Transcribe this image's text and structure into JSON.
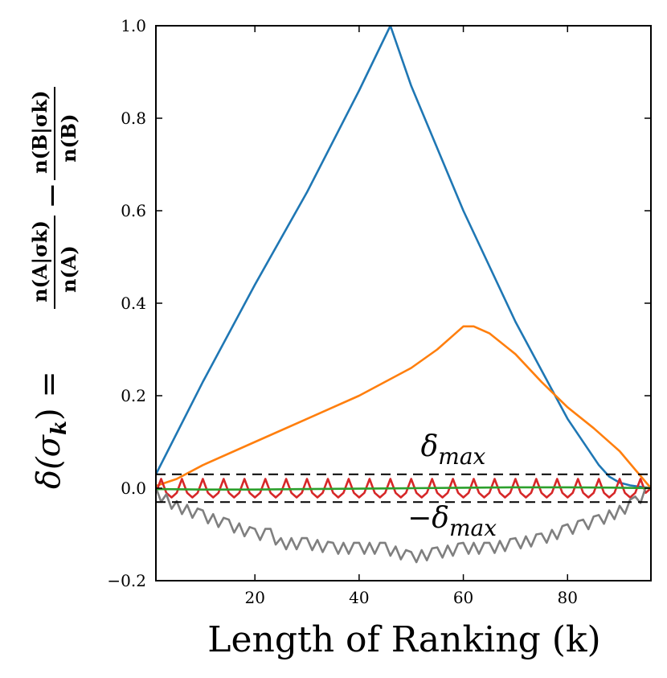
{
  "chart_data": {
    "type": "line",
    "xlabel": "Length of Ranking (k)",
    "ylabel": {
      "prefix": "δ(σ",
      "prefix_sub": "k",
      "prefix_close": ") =",
      "frac_a_num": "n(A|σk)",
      "frac_a_den": "n(A)",
      "minus": "−",
      "frac_b_num": "n(B|σk)",
      "frac_b_den": "n(B)"
    },
    "xlim": [
      1,
      96
    ],
    "ylim": [
      -0.2,
      1.0
    ],
    "xticks": [
      20,
      40,
      60,
      80
    ],
    "xtick_labels": [
      "20",
      "40",
      "60",
      "80"
    ],
    "yticks": [
      -0.2,
      0.0,
      0.2,
      0.4,
      0.6,
      0.8,
      1.0
    ],
    "ytick_labels": [
      "−0.2",
      "0.0",
      "0.2",
      "0.4",
      "0.6",
      "0.8",
      "1.0"
    ],
    "thresholds": [
      {
        "name": "delta-max",
        "value": 0.03,
        "style": "dashed",
        "color": "#000000"
      },
      {
        "name": "neg-delta-max",
        "value": -0.03,
        "style": "dashed",
        "color": "#000000"
      }
    ],
    "annotations": {
      "delta_max": {
        "symbol": "δ",
        "sub": "max",
        "x": 58,
        "y": 0.07
      },
      "neg_delta_max": {
        "symbol": "−δ",
        "sub": "max",
        "x": 57,
        "y": -0.085
      }
    },
    "series": [
      {
        "name": "blue",
        "color": "#1f77b4",
        "x": [
          1,
          10,
          20,
          30,
          40,
          46,
          50,
          60,
          70,
          80,
          86,
          88,
          90,
          92,
          96
        ],
        "y": [
          0.03,
          0.23,
          0.44,
          0.64,
          0.86,
          1.0,
          0.87,
          0.6,
          0.36,
          0.15,
          0.05,
          0.025,
          0.012,
          0.006,
          0.0
        ]
      },
      {
        "name": "orange",
        "color": "#ff7f0e",
        "x": [
          1,
          5,
          10,
          20,
          30,
          40,
          50,
          55,
          58,
          60,
          62,
          65,
          70,
          75,
          80,
          85,
          90,
          93,
          96
        ],
        "y": [
          0.005,
          0.02,
          0.05,
          0.1,
          0.15,
          0.2,
          0.26,
          0.3,
          0.33,
          0.35,
          0.35,
          0.335,
          0.29,
          0.23,
          0.175,
          0.13,
          0.08,
          0.04,
          0.0
        ]
      },
      {
        "name": "red",
        "color": "#d62728",
        "pattern": "zigzag",
        "x_start": 1,
        "x_end": 95,
        "period": 2,
        "high": 0.02,
        "low": -0.02,
        "end_value": 0.0
      },
      {
        "name": "gray",
        "color": "#7f7f7f",
        "x": [
          1,
          5,
          10,
          15,
          20,
          23,
          25,
          30,
          35,
          40,
          45,
          50,
          55,
          60,
          65,
          70,
          75,
          80,
          83,
          86,
          90,
          93,
          96
        ],
        "y": [
          -0.01,
          -0.04,
          -0.06,
          -0.08,
          -0.1,
          -0.1,
          -0.12,
          -0.12,
          -0.13,
          -0.13,
          -0.13,
          -0.15,
          -0.14,
          -0.13,
          -0.13,
          -0.12,
          -0.11,
          -0.09,
          -0.08,
          -0.07,
          -0.05,
          -0.03,
          0.0
        ]
      },
      {
        "name": "green",
        "color": "#2ca02c",
        "x": [
          1,
          10,
          20,
          30,
          40,
          50,
          60,
          70,
          80,
          90,
          96
        ],
        "y": [
          -0.002,
          -0.003,
          -0.003,
          -0.002,
          -0.001,
          0.0,
          0.001,
          0.002,
          0.002,
          0.001,
          0.0
        ]
      }
    ]
  }
}
